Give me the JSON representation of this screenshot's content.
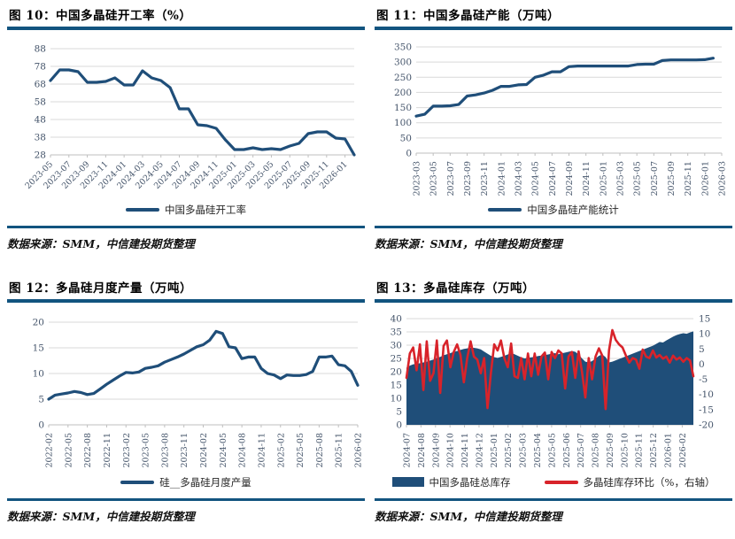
{
  "source_label": "数据来源：SMM，中信建投期货整理",
  "colors": {
    "navy": "#1F4E79",
    "red": "#D8232A",
    "rule": "#12547F",
    "grid": "#D9D9D9",
    "axis_line": "#BFBFBF",
    "axis_text": "#44546A",
    "legend_text": "#262626"
  },
  "chart_data": [
    {
      "id": "fig10",
      "type": "line",
      "title": "图 10：中国多晶硅开工率（%）",
      "categories": [
        "2023-05",
        "2023-06",
        "2023-07",
        "2023-08",
        "2023-09",
        "2023-10",
        "2023-11",
        "2023-12",
        "2024-01",
        "2024-02",
        "2024-03",
        "2024-04",
        "2024-05",
        "2024-06",
        "2024-07",
        "2024-08",
        "2024-09",
        "2024-10",
        "2024-11",
        "2024-12",
        "2025-01",
        "2025-02",
        "2025-03",
        "2025-04",
        "2025-05",
        "2025-06",
        "2025-07",
        "2025-08",
        "2025-09",
        "2025-10",
        "2025-11",
        "2025-12",
        "2026-01",
        "2026-02"
      ],
      "series": [
        {
          "name": "中国多晶硅开工率",
          "kind": "line",
          "axis": "left",
          "color": "#1F4E79",
          "width": 3.2,
          "values": [
            70,
            76,
            76,
            75,
            69,
            69,
            69.5,
            71.5,
            67.5,
            67.5,
            75.5,
            71.5,
            70,
            66,
            54,
            54,
            45,
            44.5,
            43,
            36.5,
            31,
            31,
            32,
            31,
            31.5,
            31,
            33,
            34.5,
            40,
            41,
            41,
            37.5,
            37,
            28
          ]
        }
      ],
      "y_left": {
        "min": 28,
        "max": 88,
        "ticks": [
          28,
          38,
          48,
          58,
          68,
          78,
          88
        ]
      },
      "x_max": 33,
      "xticks": [
        {
          "label": "2023-05",
          "pos": 0
        },
        {
          "label": "2023-07",
          "pos": 2
        },
        {
          "label": "2023-09",
          "pos": 4
        },
        {
          "label": "2023-11",
          "pos": 6
        },
        {
          "label": "2024-01",
          "pos": 8
        },
        {
          "label": "2024-03",
          "pos": 10
        },
        {
          "label": "2024-05",
          "pos": 12
        },
        {
          "label": "2024-07",
          "pos": 14
        },
        {
          "label": "2024-09",
          "pos": 16
        },
        {
          "label": "2024-11",
          "pos": 18
        },
        {
          "label": "2025-01",
          "pos": 20
        },
        {
          "label": "2025-03",
          "pos": 22
        },
        {
          "label": "2025-05",
          "pos": 24
        },
        {
          "label": "2025-07",
          "pos": 26
        },
        {
          "label": "2025-09",
          "pos": 28
        },
        {
          "label": "2025-11",
          "pos": 30
        },
        {
          "label": "2026-01",
          "pos": 32
        }
      ]
    },
    {
      "id": "fig11",
      "type": "line",
      "title": "图 11：中国多晶硅产能（万吨）",
      "categories": [
        "2023-03",
        "2023-04",
        "2023-05",
        "2023-06",
        "2023-07",
        "2023-08",
        "2023-09",
        "2023-10",
        "2023-11",
        "2023-12",
        "2024-01",
        "2024-02",
        "2024-03",
        "2024-04",
        "2024-05",
        "2024-06",
        "2024-07",
        "2024-08",
        "2024-09",
        "2024-10",
        "2024-11",
        "2024-12",
        "2025-01",
        "2025-02",
        "2025-03",
        "2025-04",
        "2025-05",
        "2025-06",
        "2025-07",
        "2025-08",
        "2025-09",
        "2025-10",
        "2025-11",
        "2025-12",
        "2026-01",
        "2026-02"
      ],
      "series": [
        {
          "name": "中国多晶硅产能统计",
          "kind": "line",
          "axis": "left",
          "color": "#1F4E79",
          "width": 3.2,
          "values": [
            122,
            128,
            155,
            155,
            156,
            160,
            188,
            192,
            198,
            207,
            220,
            220,
            225,
            226,
            250,
            257,
            268,
            268,
            285,
            287,
            287,
            287,
            287,
            287,
            287,
            287,
            292,
            293,
            293,
            305,
            307,
            307,
            307,
            307,
            308,
            313
          ]
        }
      ],
      "y_left": {
        "min": 0,
        "max": 350,
        "ticks": [
          0,
          50,
          100,
          150,
          200,
          250,
          300,
          350
        ]
      },
      "x_max": 36,
      "xticks": [
        {
          "label": "2023-03",
          "pos": 0
        },
        {
          "label": "2023-05",
          "pos": 2
        },
        {
          "label": "2023-07",
          "pos": 4
        },
        {
          "label": "2023-09",
          "pos": 6
        },
        {
          "label": "2023-11",
          "pos": 8
        },
        {
          "label": "2024-01",
          "pos": 10
        },
        {
          "label": "2024-03",
          "pos": 12
        },
        {
          "label": "2024-05",
          "pos": 14
        },
        {
          "label": "2024-07",
          "pos": 16
        },
        {
          "label": "2024-09",
          "pos": 18
        },
        {
          "label": "2024-11",
          "pos": 20
        },
        {
          "label": "2025-01",
          "pos": 22
        },
        {
          "label": "2025-03",
          "pos": 24
        },
        {
          "label": "2025-05",
          "pos": 26
        },
        {
          "label": "2025-07",
          "pos": 28
        },
        {
          "label": "2025-09",
          "pos": 30
        },
        {
          "label": "2025-11",
          "pos": 32
        },
        {
          "label": "2026-01",
          "pos": 34
        },
        {
          "label": "2026-03",
          "pos": 36
        }
      ]
    },
    {
      "id": "fig12",
      "type": "line",
      "title": "图 12：多晶硅月度产量（万吨）",
      "categories": [
        "2022-02",
        "2022-03",
        "2022-04",
        "2022-05",
        "2022-06",
        "2022-07",
        "2022-08",
        "2022-09",
        "2022-10",
        "2022-11",
        "2022-12",
        "2023-01",
        "2023-02",
        "2023-03",
        "2023-04",
        "2023-05",
        "2023-06",
        "2023-07",
        "2023-08",
        "2023-09",
        "2023-10",
        "2023-11",
        "2023-12",
        "2024-01",
        "2024-02",
        "2024-03",
        "2024-04",
        "2024-05",
        "2024-06",
        "2024-07",
        "2024-08",
        "2024-09",
        "2024-10",
        "2024-11",
        "2024-12",
        "2025-01",
        "2025-02",
        "2025-03",
        "2025-04",
        "2025-05",
        "2025-06",
        "2025-07",
        "2025-08",
        "2025-09",
        "2025-10",
        "2025-11",
        "2025-12",
        "2026-01",
        "2026-02"
      ],
      "series": [
        {
          "name": "硅__多晶硅月度产量",
          "kind": "line",
          "axis": "left",
          "color": "#1F4E79",
          "width": 3.2,
          "values": [
            5.0,
            5.8,
            6.0,
            6.2,
            6.5,
            6.3,
            5.9,
            6.1,
            7.0,
            7.9,
            8.7,
            9.5,
            10.2,
            10.1,
            10.3,
            11.0,
            11.2,
            11.5,
            12.2,
            12.7,
            13.2,
            13.8,
            14.5,
            15.2,
            15.6,
            16.5,
            18.2,
            17.8,
            15.2,
            15.0,
            12.9,
            13.2,
            13.2,
            11.0,
            10.0,
            9.7,
            9.0,
            9.7,
            9.6,
            9.6,
            9.8,
            10.4,
            13.2,
            13.2,
            13.4,
            11.7,
            11.5,
            10.4,
            7.7
          ]
        }
      ],
      "y_left": {
        "min": 0,
        "max": 20,
        "ticks": [
          0,
          5,
          10,
          15,
          20
        ]
      },
      "x_max": 48,
      "xticks": [
        {
          "label": "2022-02",
          "pos": 0
        },
        {
          "label": "2022-05",
          "pos": 3
        },
        {
          "label": "2022-08",
          "pos": 6
        },
        {
          "label": "2022-11",
          "pos": 9
        },
        {
          "label": "2023-02",
          "pos": 12
        },
        {
          "label": "2023-05",
          "pos": 15
        },
        {
          "label": "2023-08",
          "pos": 18
        },
        {
          "label": "2023-11",
          "pos": 21
        },
        {
          "label": "2024-02",
          "pos": 24
        },
        {
          "label": "2024-05",
          "pos": 27
        },
        {
          "label": "2024-08",
          "pos": 30
        },
        {
          "label": "2024-11",
          "pos": 33
        },
        {
          "label": "2025-02",
          "pos": 36
        },
        {
          "label": "2025-05",
          "pos": 39
        },
        {
          "label": "2025-08",
          "pos": 42
        },
        {
          "label": "2025-11",
          "pos": 45
        },
        {
          "label": "2026-02",
          "pos": 48
        }
      ]
    },
    {
      "id": "fig13",
      "type": "area+line",
      "title": "图 13：多晶硅库存（万吨）",
      "x_unit": "week",
      "series": [
        {
          "name": "中国多晶硅总库存",
          "kind": "area",
          "axis": "left",
          "color": "#1F4E79",
          "values": [
            21.5,
            22.3,
            22.8,
            23.0,
            23.2,
            23.5,
            23.8,
            24.2,
            24.6,
            25.2,
            25.6,
            26.2,
            26.6,
            27.0,
            27.5,
            27.8,
            28.2,
            28.6,
            28.8,
            29.0,
            29.0,
            28.8,
            28.4,
            27.6,
            26.8,
            26.0,
            25.5,
            25.2,
            25.6,
            26.0,
            26.5,
            27.0,
            26.6,
            26.0,
            25.4,
            25.0,
            25.2,
            25.4,
            25.6,
            25.9,
            26.1,
            26.3,
            26.5,
            26.8,
            27.0,
            26.6,
            26.9,
            27.2,
            27.5,
            27.8,
            27.5,
            26.5,
            25.0,
            23.8,
            23.5,
            24.0,
            25.0,
            26.0,
            26.5,
            25.5,
            23.5,
            23.8,
            24.3,
            24.8,
            25.3,
            25.8,
            26.3,
            26.8,
            27.3,
            27.8,
            28.3,
            28.8,
            29.3,
            29.8,
            30.5,
            31.2,
            31.0,
            31.8,
            32.5,
            33.2,
            33.8,
            34.2,
            34.5,
            34.3,
            34.8,
            35.2
          ]
        },
        {
          "name": "多晶硅库存环比（%，右轴）",
          "kind": "line",
          "axis": "right",
          "color": "#D8232A",
          "width": 2.6,
          "values": [
            -4.5,
            3.5,
            5.5,
            -2.0,
            6.5,
            -8.5,
            7.5,
            -5.5,
            -3.0,
            7.8,
            -9.5,
            6.0,
            7.8,
            -1.0,
            4.0,
            6.5,
            3.0,
            -6.0,
            2.0,
            7.5,
            2.5,
            1.5,
            -3.0,
            2.0,
            -14.5,
            -3.0,
            6.5,
            4.5,
            7.8,
            2.0,
            -1.0,
            6.8,
            -4.0,
            -4.5,
            2.0,
            -5.0,
            3.5,
            -4.0,
            3.5,
            -3.5,
            2.5,
            3.8,
            -5.0,
            4.0,
            2.0,
            4.5,
            3.5,
            -8.0,
            2.5,
            4.0,
            -4.5,
            4.2,
            -2.5,
            -11.0,
            2.0,
            -5.0,
            2.5,
            5.2,
            2.8,
            -14.8,
            4.5,
            11.2,
            8.0,
            6.5,
            5.5,
            2.8,
            0.5,
            2.0,
            1.5,
            -1.5,
            4.8,
            2.5,
            2.0,
            4.5,
            2.2,
            3.0,
            1.8,
            2.5,
            0.5,
            2.8,
            1.5,
            2.2,
            0.8,
            2.0,
            1.2,
            -4.0
          ]
        }
      ],
      "y_left": {
        "min": 0,
        "max": 40,
        "ticks": [
          0,
          5,
          10,
          15,
          20,
          25,
          30,
          35,
          40
        ]
      },
      "y_right": {
        "min": -20,
        "max": 15,
        "ticks": [
          -20,
          -15,
          -10,
          -5,
          0,
          5,
          10,
          15
        ]
      },
      "x_max": 85,
      "xticks": [
        {
          "label": "2024-07",
          "pos": 0
        },
        {
          "label": "2024-08",
          "pos": 4.3
        },
        {
          "label": "2024-09",
          "pos": 8.6
        },
        {
          "label": "2024-10",
          "pos": 12.9
        },
        {
          "label": "2024-11",
          "pos": 17.2
        },
        {
          "label": "2024-12",
          "pos": 21.5
        },
        {
          "label": "2025-01",
          "pos": 25.8
        },
        {
          "label": "2025-02",
          "pos": 30.1
        },
        {
          "label": "2025-03",
          "pos": 34.4
        },
        {
          "label": "2025-04",
          "pos": 38.7
        },
        {
          "label": "2025-05",
          "pos": 43.0
        },
        {
          "label": "2025-06",
          "pos": 47.3
        },
        {
          "label": "2025-07",
          "pos": 51.6
        },
        {
          "label": "2025-08",
          "pos": 55.9
        },
        {
          "label": "2025-09",
          "pos": 60.2
        },
        {
          "label": "2025-10",
          "pos": 64.5
        },
        {
          "label": "2025-11",
          "pos": 68.8
        },
        {
          "label": "2025-12",
          "pos": 73.1
        },
        {
          "label": "2026-01",
          "pos": 77.4
        },
        {
          "label": "2026-02",
          "pos": 81.7
        }
      ]
    }
  ]
}
